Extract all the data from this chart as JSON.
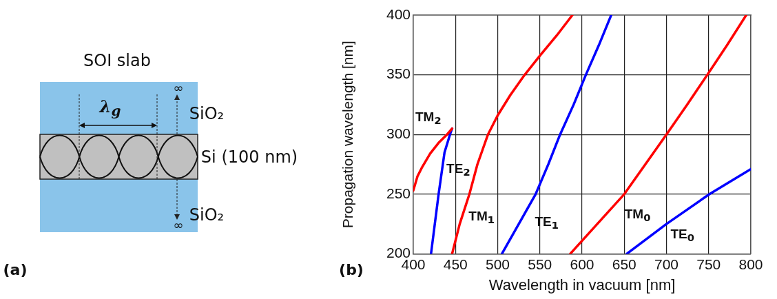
{
  "chart_data": {
    "type": "line",
    "xlabel": "Wavelength in vacuum [nm]",
    "ylabel": "Propagation wavelength [nm]",
    "xlim": [
      400,
      800
    ],
    "xticks": [
      400,
      450,
      500,
      550,
      600,
      650,
      700,
      750,
      800
    ],
    "ylim": [
      200,
      400
    ],
    "yticks": [
      200,
      250,
      300,
      350,
      400
    ],
    "grid": true,
    "legend": false,
    "marker": "none",
    "line_style": "solid",
    "series": [
      {
        "name": "TM₂",
        "color": "#ff0000",
        "x": [
          400,
          405,
          410,
          420,
          430,
          440,
          446
        ],
        "values": [
          253,
          265,
          272,
          284,
          293,
          300,
          305
        ]
      },
      {
        "name": "TE₂",
        "color": "#0000ff",
        "x": [
          421,
          430,
          437,
          443.5,
          446
        ],
        "values": [
          200,
          250,
          285,
          300,
          305
        ]
      },
      {
        "name": "TM₁",
        "color": "#ff0000",
        "x": [
          446,
          455,
          466.5,
          476,
          488.5,
          500,
          515,
          532,
          550,
          570,
          588.5
        ],
        "values": [
          200,
          225,
          250,
          275,
          300,
          316,
          333,
          350,
          366,
          383,
          400
        ]
      },
      {
        "name": "TE₁",
        "color": "#0000ff",
        "x": [
          505,
          525,
          545,
          560,
          574,
          590,
          604.5,
          620,
          634.5
        ],
        "values": [
          200,
          225,
          250,
          275,
          300,
          325,
          350,
          375,
          400
        ]
      },
      {
        "name": "TM₀",
        "color": "#ff0000",
        "x": [
          586,
          618,
          650,
          675,
          700,
          724.5,
          748.5,
          772,
          794.5
        ],
        "values": [
          200,
          225,
          250,
          275,
          300,
          325,
          350,
          375,
          400
        ]
      },
      {
        "name": "TE₀",
        "color": "#0000ff",
        "x": [
          653,
          700,
          751,
          800
        ],
        "values": [
          200,
          225,
          250,
          271
        ]
      }
    ],
    "annotations": [
      "(a)",
      "SOI slab",
      "λ$_{g}$",
      "SiO₂",
      "Si (100 nm)",
      "SiO₂",
      "∞",
      "∞",
      "(b)"
    ]
  }
}
